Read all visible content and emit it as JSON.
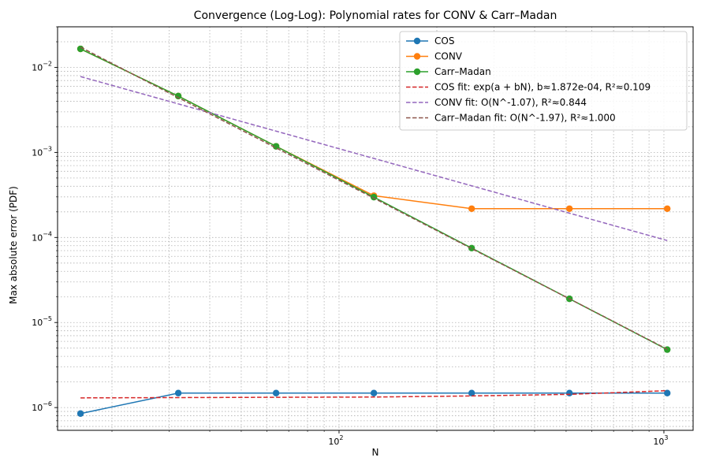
{
  "chart_data": {
    "type": "line",
    "title": "Convergence (Log-Log): Polynomial rates for CONV & Carr–Madan",
    "xlabel": "N",
    "ylabel": "Max absolute error (PDF)",
    "xscale": "log",
    "yscale": "log",
    "xlim": [
      13.6,
      1230
    ],
    "ylim": [
      5.4e-07,
      0.03
    ],
    "grid": true,
    "legend_position": "top-right",
    "x_tick_labels": [
      {
        "value": 100,
        "base": "10",
        "exp": "2"
      },
      {
        "value": 1000,
        "base": "10",
        "exp": "3"
      }
    ],
    "y_tick_labels": [
      {
        "value": 1e-06,
        "base": "10",
        "exp": "−6"
      },
      {
        "value": 1e-05,
        "base": "10",
        "exp": "−5"
      },
      {
        "value": 0.0001,
        "base": "10",
        "exp": "−4"
      },
      {
        "value": 0.001,
        "base": "10",
        "exp": "−3"
      },
      {
        "value": 0.01,
        "base": "10",
        "exp": "−2"
      }
    ],
    "x": [
      16,
      32,
      64,
      128,
      256,
      512,
      1024
    ],
    "series": [
      {
        "name": "COS",
        "color": "#1f77b4",
        "style": "solid",
        "marker": true,
        "values": [
          8.5e-07,
          1.48e-06,
          1.48e-06,
          1.48e-06,
          1.48e-06,
          1.48e-06,
          1.48e-06
        ]
      },
      {
        "name": "CONV",
        "color": "#ff7f0e",
        "style": "solid",
        "marker": true,
        "values": [
          0.0165,
          0.0046,
          0.00118,
          0.00031,
          0.000218,
          0.000218,
          0.000218
        ]
      },
      {
        "name": "Carr–Madan",
        "color": "#2ca02c",
        "style": "solid",
        "marker": true,
        "values": [
          0.0165,
          0.0046,
          0.00118,
          0.000298,
          7.5e-05,
          1.9e-05,
          4.8e-06
        ]
      },
      {
        "name": "COS fit: exp(a + bN), b≈1.872e-04, R²≈0.109",
        "color": "#d62728",
        "style": "dashed",
        "marker": false,
        "values": [
          1.3e-06,
          1.31e-06,
          1.32e-06,
          1.33e-06,
          1.37e-06,
          1.43e-06,
          1.58e-06
        ]
      },
      {
        "name": "CONV fit: O(N^-1.07), R²≈0.844",
        "color": "#9467bd",
        "style": "dashed",
        "marker": false,
        "values": [
          0.0078,
          0.00372,
          0.00178,
          0.00085,
          0.000405,
          0.000193,
          9.2e-05
        ]
      },
      {
        "name": "Carr–Madan fit: O(N^-1.97), R²≈1.000",
        "color": "#8c564b",
        "style": "dashed",
        "marker": false,
        "values": [
          0.0173,
          0.0044,
          0.00113,
          0.00029,
          7.4e-05,
          1.9e-05,
          4.85e-06
        ]
      }
    ]
  }
}
